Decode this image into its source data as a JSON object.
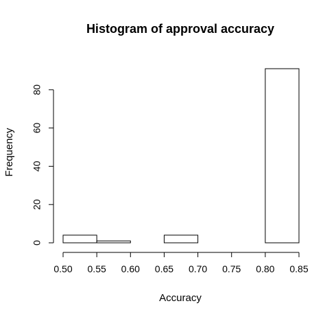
{
  "chart_data": {
    "type": "bar",
    "title": "Histogram of approval accuracy",
    "xlabel": "Accuracy",
    "ylabel": "Frequency",
    "bins": [
      {
        "start": 0.5,
        "end": 0.55,
        "count": 4
      },
      {
        "start": 0.55,
        "end": 0.6,
        "count": 1
      },
      {
        "start": 0.6,
        "end": 0.65,
        "count": 0
      },
      {
        "start": 0.65,
        "end": 0.7,
        "count": 4
      },
      {
        "start": 0.7,
        "end": 0.75,
        "count": 0
      },
      {
        "start": 0.75,
        "end": 0.8,
        "count": 0
      },
      {
        "start": 0.8,
        "end": 0.85,
        "count": 91
      }
    ],
    "xlim": [
      0.5,
      0.85
    ],
    "ylim": [
      0,
      95
    ],
    "xticks": [
      "0.50",
      "0.55",
      "0.60",
      "0.65",
      "0.70",
      "0.75",
      "0.80",
      "0.85"
    ],
    "yticks": [
      "0",
      "20",
      "40",
      "60",
      "80"
    ],
    "grid": false,
    "bar_fill": "#ffffff",
    "bar_stroke": "#000000"
  }
}
